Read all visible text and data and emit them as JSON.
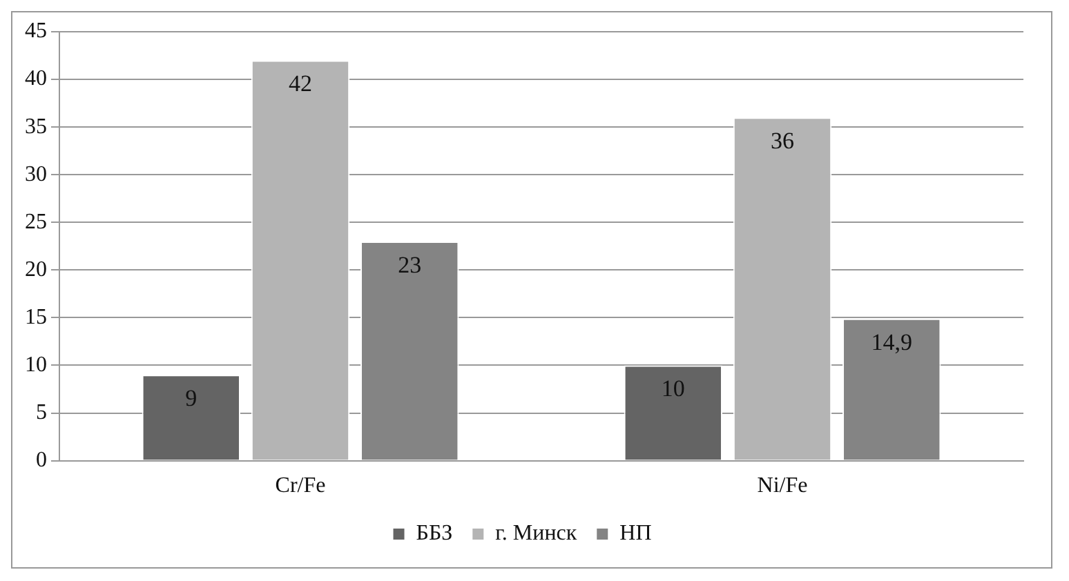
{
  "chart_data": {
    "type": "bar",
    "categories": [
      "Cr/Fe",
      "Ni/Fe"
    ],
    "series": [
      {
        "name": "ББЗ",
        "color": "#646464",
        "values": [
          9,
          10
        ],
        "value_labels": [
          "9",
          "10"
        ]
      },
      {
        "name": "г. Минск",
        "color": "#b4b4b4",
        "values": [
          42,
          36
        ],
        "value_labels": [
          "42",
          "36"
        ]
      },
      {
        "name": "НП",
        "color": "#848484",
        "values": [
          23,
          14.9
        ],
        "value_labels": [
          "23",
          "14,9"
        ]
      }
    ],
    "ylim": [
      0,
      45
    ],
    "yticks": [
      0,
      5,
      10,
      15,
      20,
      25,
      30,
      35,
      40,
      45
    ],
    "grid": "y",
    "legend": "bottom"
  }
}
